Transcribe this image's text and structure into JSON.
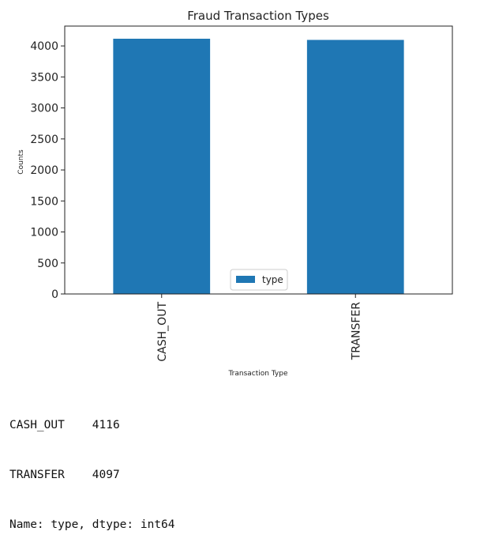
{
  "chart_data": {
    "type": "bar",
    "title": "Fraud Transaction Types",
    "xlabel": "Transaction Type",
    "ylabel": "Counts",
    "categories": [
      "CASH_OUT",
      "TRANSFER"
    ],
    "series": [
      {
        "name": "type",
        "values": [
          4116,
          4097
        ]
      }
    ],
    "ylim": [
      0,
      4320
    ],
    "yticks": [
      "0",
      "500",
      "1000",
      "1500",
      "2000",
      "2500",
      "3000",
      "3500",
      "4000"
    ],
    "legend": "lower center",
    "grid": false,
    "bar_color": "#1f77b4"
  },
  "output": {
    "lines": [
      "CASH_OUT    4116",
      "TRANSFER    4097",
      "Name: type, dtype: int64"
    ]
  }
}
